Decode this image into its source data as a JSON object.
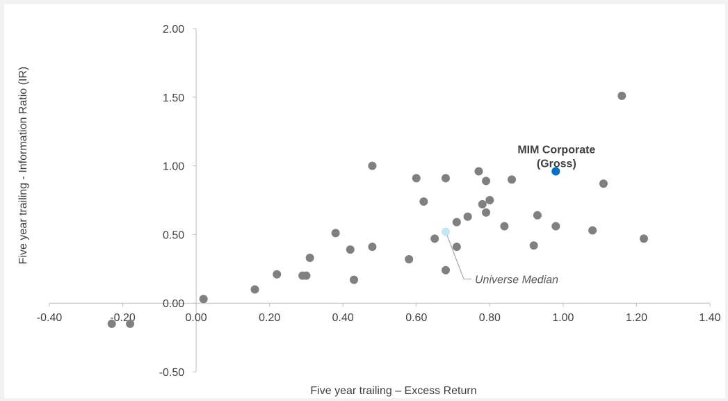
{
  "chart_data": {
    "type": "scatter",
    "xlabel": "Five year trailing – Excess Return",
    "ylabel": "Five year trailing - Information Ratio (IR)",
    "xlim": [
      -0.4,
      1.4
    ],
    "ylim": [
      -0.5,
      2.0
    ],
    "x_ticks": [
      "-0.40",
      "-0.20",
      "0.00",
      "0.20",
      "0.40",
      "0.60",
      "0.80",
      "1.00",
      "1.20",
      "1.40"
    ],
    "y_ticks": [
      "2.00",
      "1.50",
      "1.00",
      "0.50",
      "0.00",
      "-0.50"
    ],
    "grid": false,
    "legend": "none",
    "colors": {
      "universe": "#808080",
      "highlight": "#0070c0",
      "median": "#c5e6f7",
      "leader": "#a6a6a6"
    },
    "series": [
      {
        "points": [
          {
            "x": -0.23,
            "y": -0.15
          },
          {
            "x": -0.18,
            "y": -0.15
          },
          {
            "x": 0.02,
            "y": 0.03
          },
          {
            "x": 0.16,
            "y": 0.1
          },
          {
            "x": 0.22,
            "y": 0.21
          },
          {
            "x": 0.29,
            "y": 0.2
          },
          {
            "x": 0.3,
            "y": 0.2
          },
          {
            "x": 0.31,
            "y": 0.33
          },
          {
            "x": 0.38,
            "y": 0.51
          },
          {
            "x": 0.42,
            "y": 0.39
          },
          {
            "x": 0.43,
            "y": 0.17
          },
          {
            "x": 0.48,
            "y": 1.0
          },
          {
            "x": 0.48,
            "y": 0.41
          },
          {
            "x": 0.58,
            "y": 0.32
          },
          {
            "x": 0.6,
            "y": 0.91
          },
          {
            "x": 0.62,
            "y": 0.74
          },
          {
            "x": 0.65,
            "y": 0.47
          },
          {
            "x": 0.68,
            "y": 0.91
          },
          {
            "x": 0.68,
            "y": 0.24
          },
          {
            "x": 0.71,
            "y": 0.41
          },
          {
            "x": 0.71,
            "y": 0.59
          },
          {
            "x": 0.74,
            "y": 0.63
          },
          {
            "x": 0.77,
            "y": 0.96
          },
          {
            "x": 0.78,
            "y": 0.72
          },
          {
            "x": 0.79,
            "y": 0.89
          },
          {
            "x": 0.79,
            "y": 0.66
          },
          {
            "x": 0.8,
            "y": 0.75
          },
          {
            "x": 0.84,
            "y": 0.56
          },
          {
            "x": 0.86,
            "y": 0.9
          },
          {
            "x": 0.92,
            "y": 0.42
          },
          {
            "x": 0.93,
            "y": 0.64
          },
          {
            "x": 0.98,
            "y": 0.56
          },
          {
            "x": 1.08,
            "y": 0.53
          },
          {
            "x": 1.11,
            "y": 0.87
          },
          {
            "x": 1.16,
            "y": 1.51
          },
          {
            "x": 1.22,
            "y": 0.47
          }
        ]
      },
      {
        "name": "MIM Corporate (Gross)",
        "points": [
          {
            "x": 0.98,
            "y": 0.96
          }
        ]
      },
      {
        "name": "Universe Median",
        "points": [
          {
            "x": 0.68,
            "y": 0.52
          }
        ]
      }
    ],
    "annotations": {
      "mim_line1": "MIM Corporate",
      "mim_line2": "(Gross)",
      "median": "Universe Median"
    }
  }
}
